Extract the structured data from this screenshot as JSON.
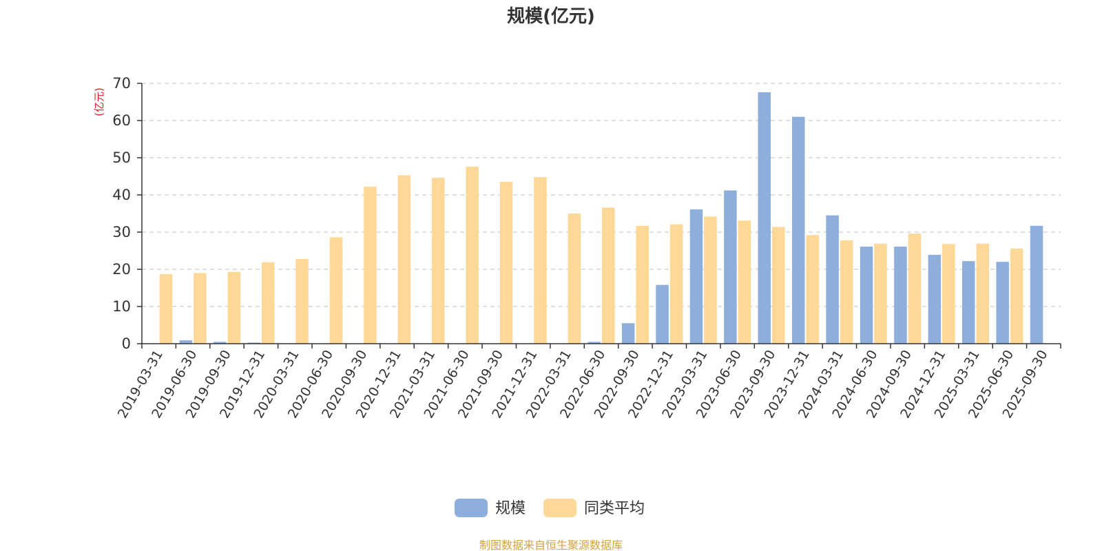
{
  "chart_data": {
    "type": "bar",
    "title": "规模(亿元)",
    "ylabel": "(亿元)",
    "ylim": [
      0,
      70
    ],
    "yticks": [
      0,
      10,
      20,
      30,
      40,
      50,
      60,
      70
    ],
    "grid": true,
    "legend_position": "bottom-center",
    "categories": [
      "2019-03-31",
      "2019-06-30",
      "2019-09-30",
      "2019-12-31",
      "2020-03-31",
      "2020-06-30",
      "2020-09-30",
      "2020-12-31",
      "2021-03-31",
      "2021-06-30",
      "2021-09-30",
      "2021-12-31",
      "2022-03-31",
      "2022-06-30",
      "2022-09-30",
      "2022-12-31",
      "2023-03-31",
      "2023-06-30",
      "2023-09-30",
      "2023-12-31",
      "2024-03-31",
      "2024-06-30",
      "2024-09-30",
      "2024-12-31",
      "2025-03-31",
      "2025-06-30",
      "2025-09-30"
    ],
    "series": [
      {
        "name": "规模",
        "color": "#8eaedc",
        "values": [
          0.1,
          0.9,
          0.5,
          0.3,
          0.1,
          0,
          0,
          0,
          0,
          0,
          0,
          0,
          0,
          0.5,
          5.5,
          15.8,
          36.1,
          41.2,
          67.6,
          61.0,
          34.5,
          26.1,
          26.1,
          23.9,
          22.2,
          22.0,
          31.7
        ]
      },
      {
        "name": "同类平均",
        "color": "#fed897",
        "values": [
          18.7,
          19.0,
          19.3,
          21.9,
          22.8,
          28.6,
          42.2,
          45.3,
          44.6,
          47.6,
          43.5,
          44.8,
          35.0,
          36.6,
          31.7,
          32.1,
          34.2,
          33.1,
          31.4,
          29.2,
          27.8,
          26.9,
          29.6,
          26.8,
          26.9,
          25.6,
          null
        ]
      }
    ]
  },
  "source": "制图数据来自恒生聚源数据库",
  "colors": {
    "title": "#333333",
    "ylabel": "#e0201c",
    "source": "#d4a23f",
    "grid": "#cccccc",
    "axis": "#333333"
  }
}
